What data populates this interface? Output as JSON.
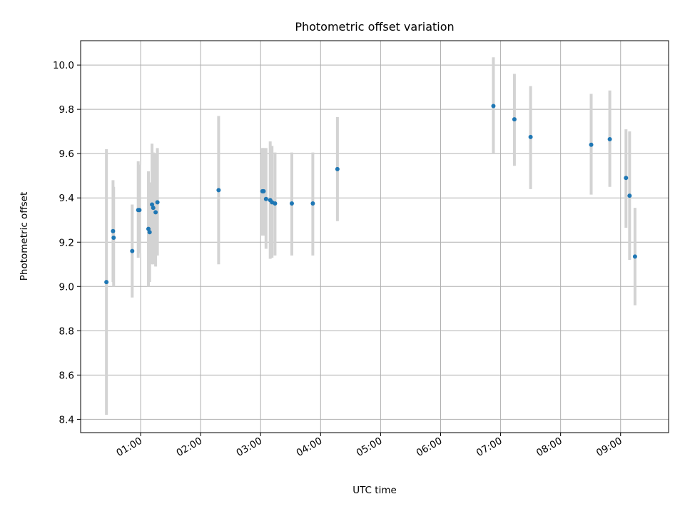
{
  "chart_data": {
    "type": "scatter",
    "title": "Photometric offset variation",
    "xlabel": "UTC time",
    "ylabel": "Photometric offset",
    "x_range_hours": [
      0.0,
      9.8
    ],
    "ylim": [
      8.34,
      10.11
    ],
    "grid": true,
    "x_ticks": [
      {
        "value": 1,
        "label": "01:00"
      },
      {
        "value": 2,
        "label": "02:00"
      },
      {
        "value": 3,
        "label": "03:00"
      },
      {
        "value": 4,
        "label": "04:00"
      },
      {
        "value": 5,
        "label": "05:00"
      },
      {
        "value": 6,
        "label": "06:00"
      },
      {
        "value": 7,
        "label": "07:00"
      },
      {
        "value": 8,
        "label": "08:00"
      },
      {
        "value": 9,
        "label": "09:00"
      }
    ],
    "y_ticks": [
      {
        "value": 8.4,
        "label": "8.4"
      },
      {
        "value": 8.6,
        "label": "8.6"
      },
      {
        "value": 8.8,
        "label": "8.8"
      },
      {
        "value": 9.0,
        "label": "9.0"
      },
      {
        "value": 9.2,
        "label": "9.2"
      },
      {
        "value": 9.4,
        "label": "9.4"
      },
      {
        "value": 9.6,
        "label": "9.6"
      },
      {
        "value": 9.8,
        "label": "9.8"
      },
      {
        "value": 10.0,
        "label": "10.0"
      }
    ],
    "colors": {
      "point": "#1f77b4",
      "errorbar": "#d3d3d3",
      "grid": "#b0b0b0"
    },
    "series": [
      {
        "points": [
          {
            "x": 0.43,
            "y": 9.02,
            "lo": 8.42,
            "hi": 9.62
          },
          {
            "x": 0.54,
            "y": 9.25,
            "lo": 9.02,
            "hi": 9.48
          },
          {
            "x": 0.55,
            "y": 9.22,
            "lo": 9.0,
            "hi": 9.45
          },
          {
            "x": 0.86,
            "y": 9.16,
            "lo": 8.95,
            "hi": 9.37
          },
          {
            "x": 0.96,
            "y": 9.345,
            "lo": 9.13,
            "hi": 9.565
          },
          {
            "x": 0.98,
            "y": 9.345,
            "lo": 9.15,
            "hi": 9.55
          },
          {
            "x": 1.13,
            "y": 9.26,
            "lo": 9.0,
            "hi": 9.52
          },
          {
            "x": 1.15,
            "y": 9.245,
            "lo": 9.02,
            "hi": 9.47
          },
          {
            "x": 1.19,
            "y": 9.37,
            "lo": 9.1,
            "hi": 9.645
          },
          {
            "x": 1.21,
            "y": 9.355,
            "lo": 9.1,
            "hi": 9.605
          },
          {
            "x": 1.25,
            "y": 9.335,
            "lo": 9.09,
            "hi": 9.6
          },
          {
            "x": 1.28,
            "y": 9.38,
            "lo": 9.14,
            "hi": 9.625
          },
          {
            "x": 2.3,
            "y": 9.435,
            "lo": 9.1,
            "hi": 9.77
          },
          {
            "x": 3.03,
            "y": 9.43,
            "lo": 9.23,
            "hi": 9.625
          },
          {
            "x": 3.05,
            "y": 9.43,
            "lo": 9.23,
            "hi": 9.625
          },
          {
            "x": 3.09,
            "y": 9.395,
            "lo": 9.17,
            "hi": 9.625
          },
          {
            "x": 3.16,
            "y": 9.39,
            "lo": 9.125,
            "hi": 9.655
          },
          {
            "x": 3.19,
            "y": 9.38,
            "lo": 9.13,
            "hi": 9.635
          },
          {
            "x": 3.24,
            "y": 9.375,
            "lo": 9.14,
            "hi": 9.605
          },
          {
            "x": 3.52,
            "y": 9.375,
            "lo": 9.14,
            "hi": 9.605
          },
          {
            "x": 3.87,
            "y": 9.375,
            "lo": 9.14,
            "hi": 9.605
          },
          {
            "x": 4.28,
            "y": 9.53,
            "lo": 9.295,
            "hi": 9.765
          },
          {
            "x": 6.88,
            "y": 9.815,
            "lo": 9.6,
            "hi": 10.035
          },
          {
            "x": 7.23,
            "y": 9.755,
            "lo": 9.545,
            "hi": 9.96
          },
          {
            "x": 7.5,
            "y": 9.675,
            "lo": 9.44,
            "hi": 9.905
          },
          {
            "x": 8.51,
            "y": 9.64,
            "lo": 9.415,
            "hi": 9.87
          },
          {
            "x": 8.82,
            "y": 9.665,
            "lo": 9.45,
            "hi": 9.885
          },
          {
            "x": 9.09,
            "y": 9.49,
            "lo": 9.265,
            "hi": 9.71
          },
          {
            "x": 9.15,
            "y": 9.41,
            "lo": 9.12,
            "hi": 9.7
          },
          {
            "x": 9.24,
            "y": 9.135,
            "lo": 8.915,
            "hi": 9.355
          }
        ]
      }
    ]
  }
}
